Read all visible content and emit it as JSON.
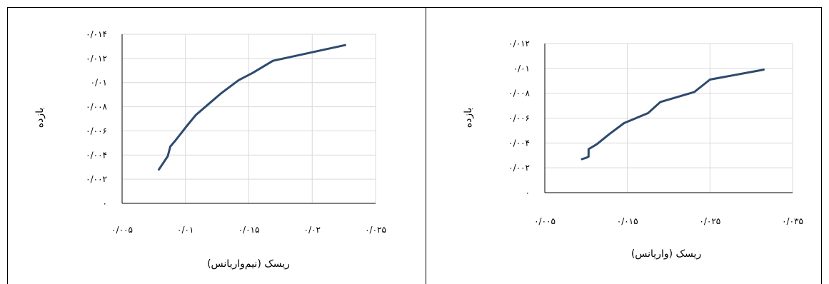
{
  "chart_data": [
    {
      "type": "line",
      "title": "",
      "xlabel": "ریسک (نیم‌واریانس)",
      "ylabel": "بازده",
      "xlim": [
        0.005,
        0.025
      ],
      "ylim": [
        0,
        0.014
      ],
      "xticks": [
        0.005,
        0.01,
        0.015,
        0.02,
        0.025
      ],
      "xtick_labels": [
        "۰/۰۰۵",
        "۰/۰۱",
        "۰/۰۱۵",
        "۰/۰۲",
        "۰/۰۲۵"
      ],
      "yticks": [
        0,
        0.002,
        0.004,
        0.006,
        0.008,
        0.01,
        0.012,
        0.014
      ],
      "ytick_labels": [
        "۰",
        "۰/۰۰۲",
        "۰/۰۰۴",
        "۰/۰۰۶",
        "۰/۰۰۸",
        "۰/۰۱",
        "۰/۰۱۲",
        "۰/۰۱۴"
      ],
      "grid": true,
      "line_color": "#2e4a6e",
      "series": [
        {
          "x": [
            0.0079,
            0.0086,
            0.0088,
            0.0092,
            0.0101,
            0.0108,
            0.0118,
            0.0128,
            0.0142,
            0.0153,
            0.0169,
            0.0226
          ],
          "y": [
            0.0028,
            0.0039,
            0.0047,
            0.0052,
            0.0064,
            0.0073,
            0.0082,
            0.0091,
            0.0102,
            0.0108,
            0.0118,
            0.0131
          ]
        }
      ]
    },
    {
      "type": "line",
      "title": "",
      "xlabel": "ریسک (واریانس)",
      "ylabel": "بازده",
      "xlim": [
        0.005,
        0.035
      ],
      "ylim": [
        0,
        0.012
      ],
      "xticks": [
        0.005,
        0.015,
        0.025,
        0.035
      ],
      "xtick_labels": [
        "۰/۰۰۵",
        "۰/۰۱۵",
        "۰/۰۲۵",
        "۰/۰۳۵"
      ],
      "yticks": [
        0,
        0.002,
        0.004,
        0.006,
        0.008,
        0.01,
        0.012
      ],
      "ytick_labels": [
        "۰",
        "۰/۰۰۲",
        "۰/۰۰۴",
        "۰/۰۰۶",
        "۰/۰۰۸",
        "۰/۰۱",
        "۰/۰۱۲"
      ],
      "grid": true,
      "line_color": "#2e4a6e",
      "series": [
        {
          "x": [
            0.0095,
            0.01,
            0.0103,
            0.0103,
            0.0113,
            0.0128,
            0.0146,
            0.0175,
            0.019,
            0.0231,
            0.025,
            0.0315
          ],
          "y": [
            0.0027,
            0.0028,
            0.0029,
            0.0035,
            0.0039,
            0.0047,
            0.0056,
            0.0064,
            0.0073,
            0.0081,
            0.0091,
            0.0099
          ]
        }
      ]
    }
  ]
}
